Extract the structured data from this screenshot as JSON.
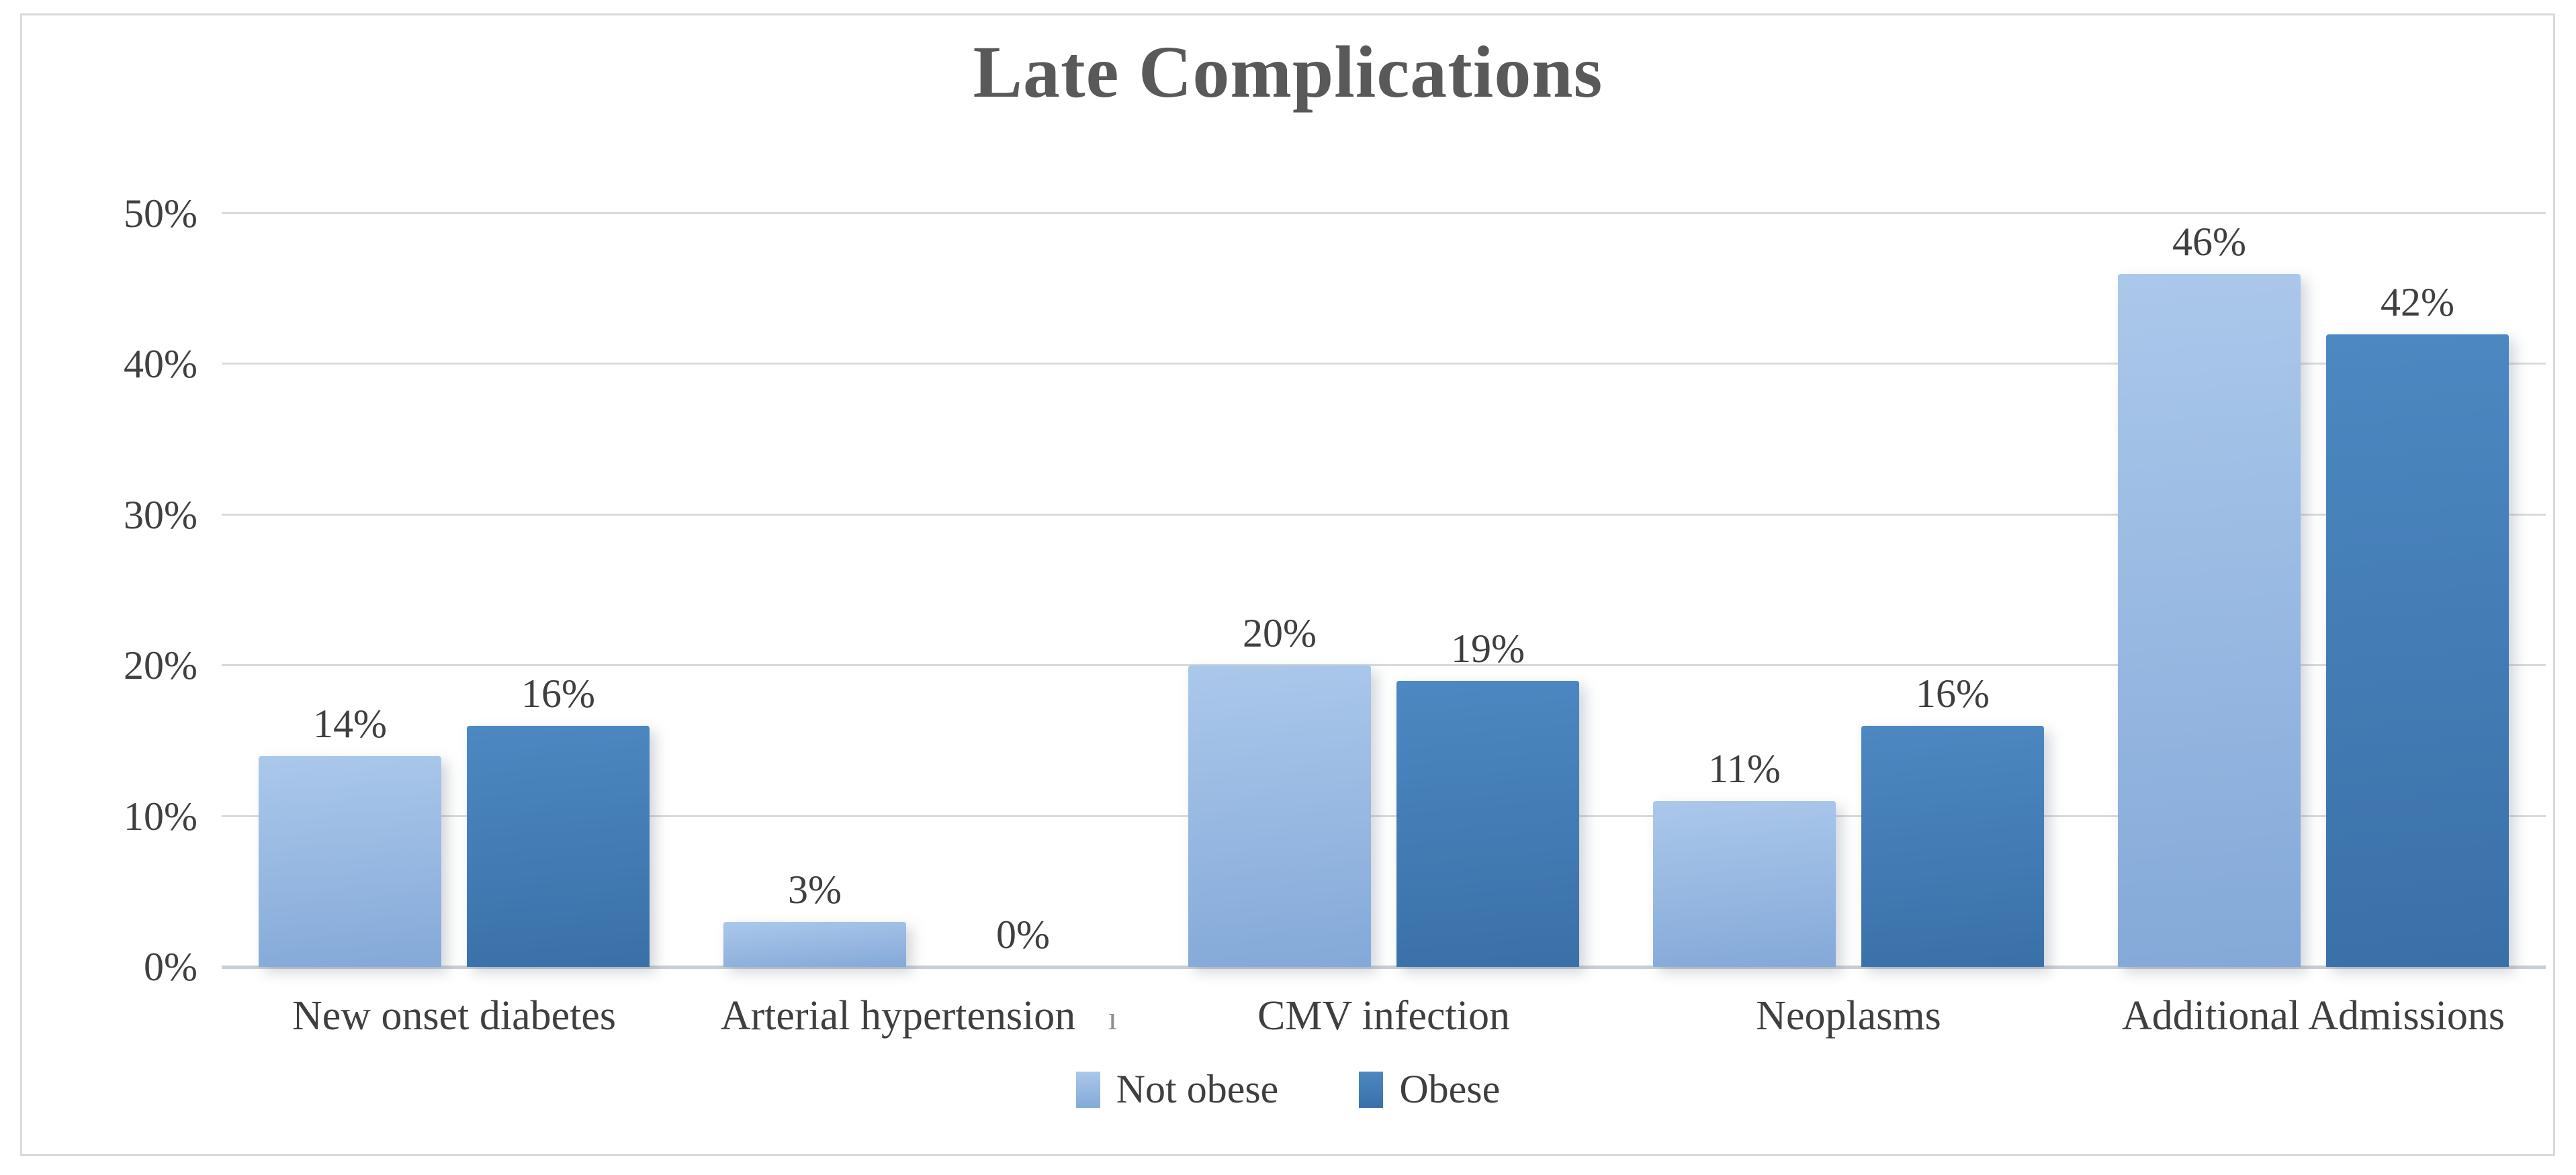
{
  "chart_data": {
    "type": "bar",
    "title": "Late Complications",
    "categories": [
      "New onset diabetes",
      "Arterial hypertension",
      "CMV infection",
      "Neoplasms",
      "Additional Admissions"
    ],
    "series": [
      {
        "name": "Not obese",
        "values": [
          14,
          3,
          20,
          11,
          46
        ],
        "labels": [
          "14%",
          "3%",
          "20%",
          "11%",
          "46%"
        ],
        "color_top": "#ABC8EB",
        "color_bottom": "#84A9D8",
        "legend_swatch": "#8FB4E2"
      },
      {
        "name": "Obese",
        "values": [
          16,
          0,
          19,
          16,
          42
        ],
        "labels": [
          "16%",
          "0%",
          "19%",
          "16%",
          "42%"
        ],
        "color_top": "#4D88C2",
        "color_bottom": "#3A70A8",
        "legend_swatch": "#4183BE"
      }
    ],
    "y_ticks": [
      {
        "label": "0%",
        "value": 0
      },
      {
        "label": "10%",
        "value": 10
      },
      {
        "label": "20%",
        "value": 20
      },
      {
        "label": "30%",
        "value": 30
      },
      {
        "label": "40%",
        "value": 40
      },
      {
        "label": "50%",
        "value": 50
      }
    ],
    "ylim": [
      0,
      50
    ],
    "grid": "horizontal",
    "legend_position": "bottom",
    "annotations": [
      {
        "text": "ı",
        "category_index": 1
      }
    ]
  },
  "colors": {
    "background": "#FFFFFF",
    "frame_border": "#D9D9D9",
    "title_text": "#595959",
    "label_text": "#3F3F3F",
    "tick_text": "#404040",
    "gridline": "#DADADA",
    "axis_line": "#C9CED4",
    "stray_mark": "#8F8F8F"
  }
}
